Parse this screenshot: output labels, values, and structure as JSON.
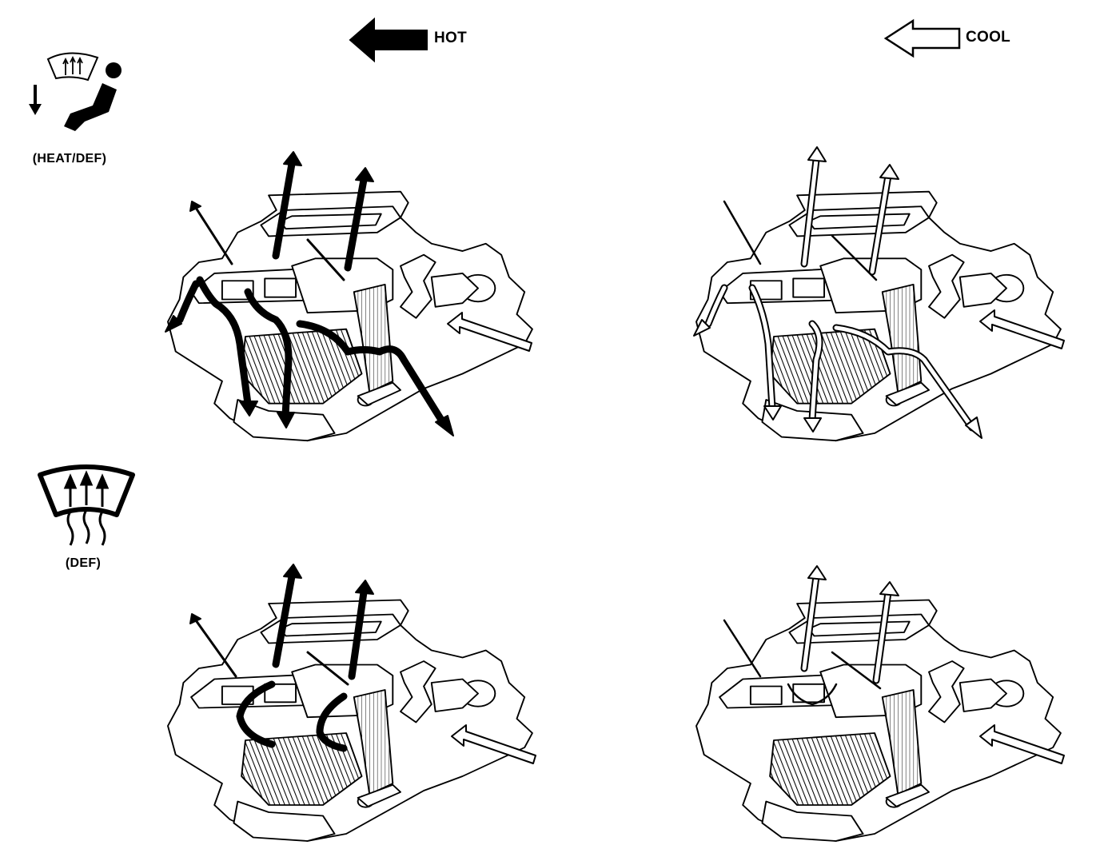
{
  "legend": {
    "hot_label": "HOT",
    "cool_label": "COOL",
    "hot_color": "#000000",
    "cool_color": "#ffffff"
  },
  "modes": [
    {
      "id": "heat-def",
      "label": "(HEAT/DEF)",
      "icon": "heat-def-mode-icon"
    },
    {
      "id": "def",
      "label": "(DEF)",
      "icon": "defrost-mode-icon"
    }
  ],
  "panels": [
    {
      "id": "heat-def-hot",
      "mode": "heat-def",
      "flow": "hot"
    },
    {
      "id": "heat-def-cool",
      "mode": "heat-def",
      "flow": "cool"
    },
    {
      "id": "def-hot",
      "mode": "def",
      "flow": "hot"
    },
    {
      "id": "def-cool",
      "mode": "def",
      "flow": "cool"
    }
  ]
}
